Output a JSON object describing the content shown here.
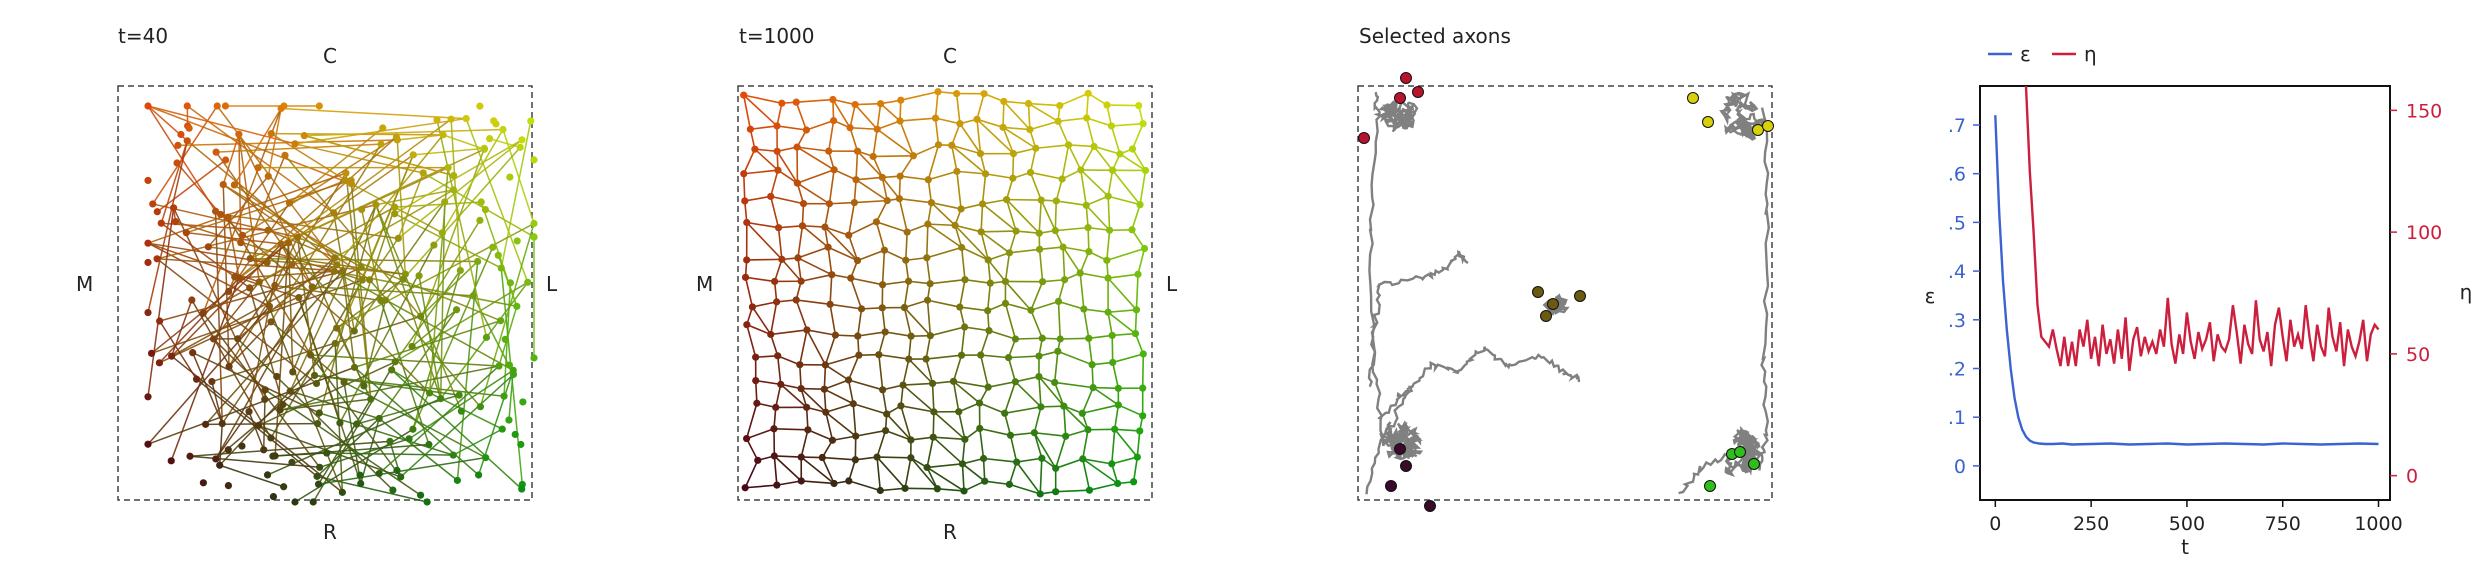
{
  "panels": {
    "p1": {
      "title": "t=40",
      "top": "C",
      "bottom": "R",
      "left": "M",
      "right": "L"
    },
    "p2": {
      "title": "t=1000",
      "top": "C",
      "bottom": "R",
      "left": "M",
      "right": "L"
    },
    "p3": {
      "title": "Selected axons"
    }
  },
  "colors": {
    "epsilon": "#3b63d1",
    "eta": "#cc1f3d",
    "axon": "#808080",
    "frame": "#444444"
  },
  "chart_data": {
    "type": "line",
    "xlabel": "t",
    "ylabel_left": "ε",
    "ylabel_right": "η",
    "xlim": [
      -40,
      1030
    ],
    "ylim_left": [
      -0.07,
      0.78
    ],
    "ylim_right": [
      -10,
      160
    ],
    "xticks": [
      0,
      250,
      500,
      750,
      1000
    ],
    "xtick_labels": [
      "0",
      "250",
      "500",
      "750",
      "1000"
    ],
    "yticks_left": [
      0,
      0.1,
      0.2,
      0.3,
      0.4,
      0.5,
      0.6,
      0.7
    ],
    "ytick_labels_left": [
      "0",
      ".1",
      ".2",
      ".3",
      ".4",
      ".5",
      ".6",
      ".7"
    ],
    "yticks_right": [
      0,
      50,
      100,
      150
    ],
    "ytick_labels_right": [
      "0",
      "50",
      "100",
      "150"
    ],
    "legend": "top-left",
    "series": [
      {
        "name": "ε",
        "axis": "left",
        "x": [
          0,
          10,
          20,
          30,
          40,
          50,
          60,
          70,
          80,
          90,
          100,
          115,
          130,
          150,
          175,
          200,
          250,
          300,
          350,
          400,
          450,
          500,
          550,
          600,
          650,
          700,
          750,
          800,
          850,
          900,
          950,
          1000
        ],
        "values": [
          0.72,
          0.52,
          0.38,
          0.28,
          0.2,
          0.14,
          0.1,
          0.075,
          0.06,
          0.052,
          0.048,
          0.046,
          0.045,
          0.045,
          0.046,
          0.044,
          0.045,
          0.046,
          0.044,
          0.045,
          0.046,
          0.044,
          0.045,
          0.046,
          0.045,
          0.044,
          0.046,
          0.045,
          0.044,
          0.045,
          0.046,
          0.045
        ]
      },
      {
        "name": "η",
        "axis": "right",
        "x": [
          80,
          90,
          100,
          110,
          120,
          130,
          140,
          150,
          160,
          170,
          180,
          190,
          200,
          210,
          220,
          230,
          240,
          250,
          260,
          270,
          280,
          290,
          300,
          310,
          320,
          330,
          340,
          350,
          360,
          370,
          380,
          390,
          400,
          410,
          420,
          430,
          440,
          450,
          460,
          470,
          480,
          490,
          500,
          510,
          520,
          530,
          540,
          550,
          560,
          570,
          580,
          590,
          600,
          610,
          620,
          630,
          640,
          650,
          660,
          670,
          680,
          690,
          700,
          710,
          720,
          730,
          740,
          750,
          760,
          770,
          780,
          790,
          800,
          810,
          820,
          830,
          840,
          850,
          860,
          870,
          880,
          890,
          900,
          910,
          920,
          930,
          940,
          950,
          960,
          970,
          980,
          990,
          1000
        ],
        "values": [
          160,
          125,
          100,
          70,
          57,
          55,
          53,
          60,
          52,
          45,
          57,
          45,
          55,
          45,
          60,
          53,
          64,
          48,
          57,
          45,
          62,
          50,
          56,
          46,
          60,
          48,
          65,
          43,
          56,
          61,
          49,
          57,
          51,
          55,
          50,
          60,
          53,
          73,
          54,
          46,
          58,
          50,
          67,
          55,
          48,
          59,
          52,
          56,
          63,
          47,
          58,
          53,
          51,
          56,
          70,
          59,
          46,
          62,
          54,
          50,
          72,
          56,
          51,
          59,
          45,
          62,
          69,
          57,
          47,
          64,
          53,
          58,
          52,
          70,
          57,
          47,
          62,
          53,
          49,
          69,
          57,
          51,
          63,
          45,
          60,
          53,
          49,
          55,
          64,
          47,
          58,
          62,
          60
        ]
      }
    ]
  }
}
